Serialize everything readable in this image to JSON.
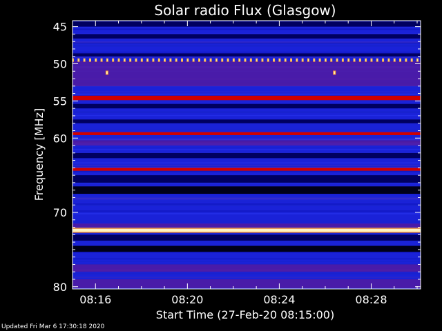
{
  "footer_text": "Updated Fri Mar  6 17:30:18 2020",
  "chart_data": {
    "type": "heatmap",
    "title": "Solar radio Flux (Glasgow)",
    "xlabel": "Start Time (27-Feb-20 08:15:00)",
    "ylabel": "Frequency [MHz]",
    "x_ticks": [
      "08:16",
      "08:20",
      "08:24",
      "08:28"
    ],
    "x_tick_minutes": [
      16,
      20,
      24,
      28
    ],
    "xlim_minutes": [
      15,
      30.15
    ],
    "y_ticks": [
      45,
      50,
      55,
      60,
      70,
      80
    ],
    "y_tick_labels": [
      "45",
      "50",
      "55",
      "60",
      "70",
      "80"
    ],
    "ylim": [
      44.2,
      80.3
    ],
    "colors": {
      "background_band": "#1a22d8",
      "dark_band": "#000060",
      "strong_line": "#d00000",
      "brightest_line": "#fff4c0"
    },
    "bands": [
      {
        "freq_start": 44.3,
        "freq_end": 45.0,
        "level": "dark"
      },
      {
        "freq_start": 46.0,
        "freq_end": 46.6,
        "level": "dark"
      },
      {
        "freq_start": 48.6,
        "freq_end": 49.0,
        "level": "dark"
      },
      {
        "freq_start": 49.6,
        "freq_end": 50.2,
        "level": "purple"
      },
      {
        "freq_start": 50.2,
        "freq_end": 53.0,
        "level": "purple"
      },
      {
        "freq_start": 54.3,
        "freq_end": 54.9,
        "level": "red"
      },
      {
        "freq_start": 55.4,
        "freq_end": 56.0,
        "level": "dark"
      },
      {
        "freq_start": 57.5,
        "freq_end": 58.0,
        "level": "dark"
      },
      {
        "freq_start": 59.2,
        "freq_end": 59.6,
        "level": "red"
      },
      {
        "freq_start": 60.3,
        "freq_end": 61.0,
        "level": "purple"
      },
      {
        "freq_start": 62.0,
        "freq_end": 62.7,
        "level": "dark"
      },
      {
        "freq_start": 64.0,
        "freq_end": 64.4,
        "level": "red"
      },
      {
        "freq_start": 65.0,
        "freq_end": 66.0,
        "level": "dark"
      },
      {
        "freq_start": 66.5,
        "freq_end": 67.5,
        "level": "black"
      },
      {
        "freq_start": 71.5,
        "freq_end": 72.0,
        "level": "purple"
      },
      {
        "freq_start": 72.2,
        "freq_end": 72.6,
        "level": "bright"
      },
      {
        "freq_start": 73.0,
        "freq_end": 73.8,
        "level": "dark"
      },
      {
        "freq_start": 74.5,
        "freq_end": 75.3,
        "level": "black"
      },
      {
        "freq_start": 77.0,
        "freq_end": 78.0,
        "level": "purple"
      },
      {
        "freq_start": 79.0,
        "freq_end": 80.2,
        "level": "purple"
      }
    ],
    "periodic_spots": {
      "freq": 49.5,
      "interval_minutes": 0.25,
      "start_minute": 15.0
    },
    "isolated_spots": [
      {
        "minute": 16.5,
        "freq": 51.2
      },
      {
        "minute": 26.4,
        "freq": 51.2
      }
    ]
  }
}
